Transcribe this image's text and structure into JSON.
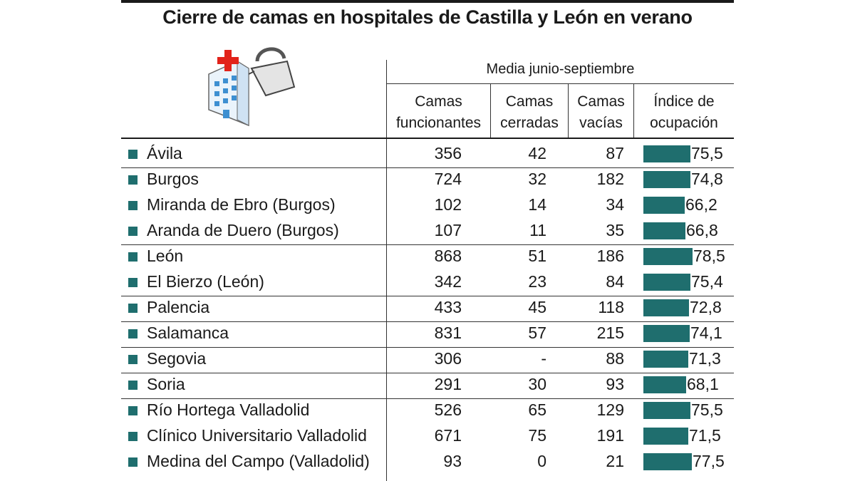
{
  "chart_data": {
    "type": "table",
    "title": "Cierre de camas en hospitales de Castilla y León en verano",
    "group_header": "Media junio-septiembre",
    "columns": [
      {
        "line1": "Camas",
        "line2": "funcionantes"
      },
      {
        "line1": "Camas",
        "line2": "cerradas"
      },
      {
        "line1": "Camas",
        "line2": "vacías"
      },
      {
        "line1": "Índice de",
        "line2": "ocupación"
      }
    ],
    "bar_scale_max": 100,
    "rows": [
      {
        "name": "Ávila",
        "funcionantes": "356",
        "cerradas": "42",
        "vacias": "87",
        "ocupacion": 75.5,
        "ocupacion_label": "75,5"
      },
      {
        "name": "Burgos",
        "funcionantes": "724",
        "cerradas": "32",
        "vacias": "182",
        "ocupacion": 74.8,
        "ocupacion_label": "74,8"
      },
      {
        "name": "Miranda de Ebro (Burgos)",
        "funcionantes": "102",
        "cerradas": "14",
        "vacias": "34",
        "ocupacion": 66.2,
        "ocupacion_label": "66,2"
      },
      {
        "name": "Aranda de Duero (Burgos)",
        "funcionantes": "107",
        "cerradas": "11",
        "vacias": "35",
        "ocupacion": 66.8,
        "ocupacion_label": "66,8"
      },
      {
        "name": "León",
        "funcionantes": "868",
        "cerradas": "51",
        "vacias": "186",
        "ocupacion": 78.5,
        "ocupacion_label": "78,5"
      },
      {
        "name": "El Bierzo (León)",
        "funcionantes": "342",
        "cerradas": "23",
        "vacias": "84",
        "ocupacion": 75.4,
        "ocupacion_label": "75,4"
      },
      {
        "name": "Palencia",
        "funcionantes": "433",
        "cerradas": "45",
        "vacias": "118",
        "ocupacion": 72.8,
        "ocupacion_label": "72,8"
      },
      {
        "name": "Salamanca",
        "funcionantes": "831",
        "cerradas": "57",
        "vacias": "215",
        "ocupacion": 74.1,
        "ocupacion_label": "74,1"
      },
      {
        "name": "Segovia",
        "funcionantes": "306",
        "cerradas": "-",
        "vacias": "88",
        "ocupacion": 71.3,
        "ocupacion_label": "71,3"
      },
      {
        "name": "Soria",
        "funcionantes": "291",
        "cerradas": "30",
        "vacias": "93",
        "ocupacion": 68.1,
        "ocupacion_label": "68,1"
      },
      {
        "name": "Río Hortega Valladolid",
        "funcionantes": "526",
        "cerradas": "65",
        "vacias": "129",
        "ocupacion": 75.5,
        "ocupacion_label": "75,5"
      },
      {
        "name": "Clínico Universitario Valladolid",
        "funcionantes": "671",
        "cerradas": "75",
        "vacias": "191",
        "ocupacion": 71.5,
        "ocupacion_label": "71,5"
      },
      {
        "name": "Medina del Campo (Valladolid)",
        "funcionantes": "93",
        "cerradas": "0",
        "vacias": "21",
        "ocupacion": 77.5,
        "ocupacion_label": "77,5"
      }
    ],
    "group_breaks_after": [
      0,
      3,
      5,
      6,
      7,
      8,
      9
    ]
  },
  "colors": {
    "bar": "#1f6e6e",
    "text": "#1a1a1a",
    "icon_red": "#e2231a",
    "icon_blue": "#3d8fd1"
  }
}
